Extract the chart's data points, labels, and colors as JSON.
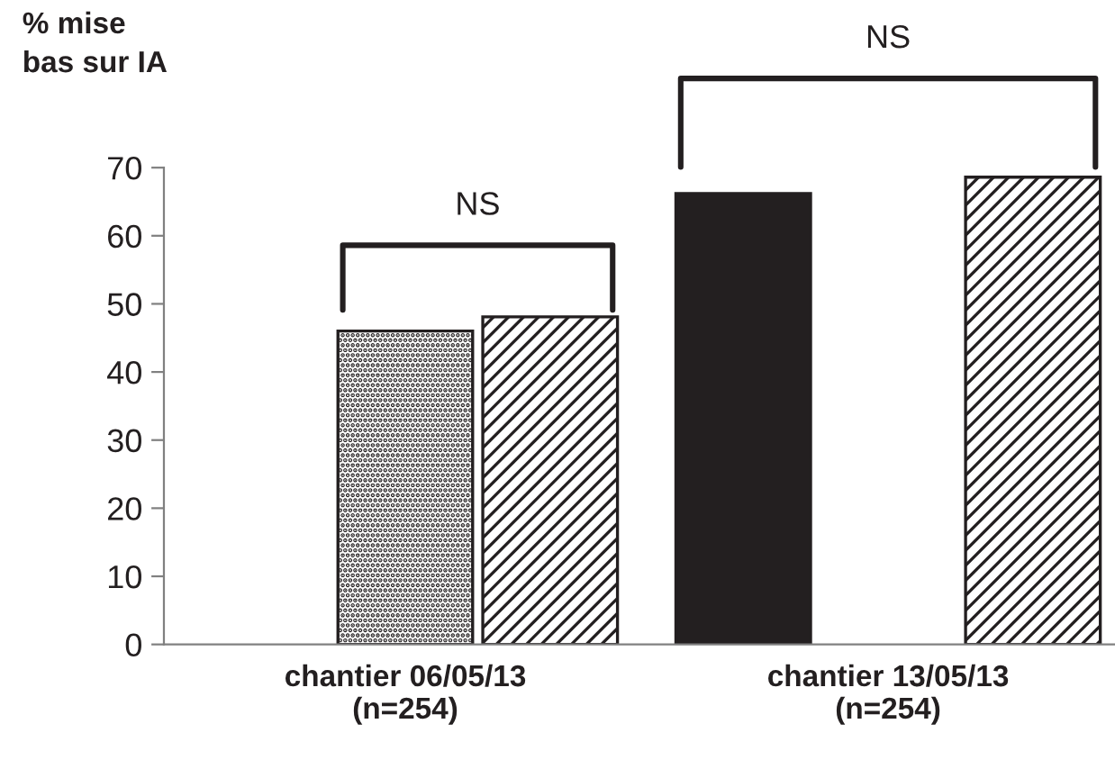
{
  "chart_data": {
    "type": "bar",
    "ylabel": "% mise\nbas sur IA",
    "categories": [
      "chantier 06/05/13\n(n=254)",
      "chantier 13/05/13\n(n=254)"
    ],
    "series": [
      {
        "color": "#231f20",
        "values": [
          null,
          66.2
        ]
      },
      {
        "color": "#231f20",
        "values": [
          46.0,
          null
        ]
      },
      {
        "color": "#231f20",
        "values": [
          48.1,
          68.6
        ]
      }
    ],
    "ylim": [
      0,
      70
    ],
    "yticks": [
      0,
      10,
      20,
      30,
      40,
      50,
      60,
      70
    ],
    "grid": false,
    "legend": false,
    "annotations": [
      "NS",
      "NS"
    ]
  }
}
